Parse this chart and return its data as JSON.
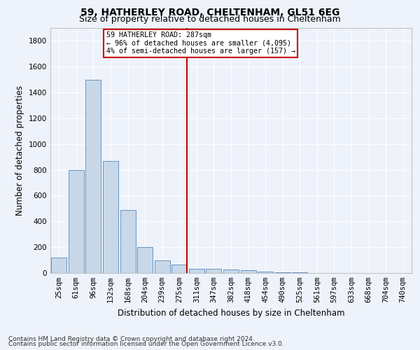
{
  "title1": "59, HATHERLEY ROAD, CHELTENHAM, GL51 6EG",
  "title2": "Size of property relative to detached houses in Cheltenham",
  "xlabel": "Distribution of detached houses by size in Cheltenham",
  "ylabel": "Number of detached properties",
  "footnote1": "Contains HM Land Registry data © Crown copyright and database right 2024.",
  "footnote2": "Contains public sector information licensed under the Open Government Licence v3.0.",
  "bar_labels": [
    "25sqm",
    "61sqm",
    "96sqm",
    "132sqm",
    "168sqm",
    "204sqm",
    "239sqm",
    "275sqm",
    "311sqm",
    "347sqm",
    "382sqm",
    "418sqm",
    "454sqm",
    "490sqm",
    "525sqm",
    "561sqm",
    "597sqm",
    "633sqm",
    "668sqm",
    "704sqm",
    "740sqm"
  ],
  "bar_values": [
    120,
    800,
    1500,
    870,
    490,
    200,
    100,
    65,
    35,
    30,
    25,
    20,
    10,
    5,
    3,
    2,
    2,
    1,
    1,
    1,
    1
  ],
  "bar_color": "#c8d8e8",
  "bar_edge_color": "#5588bb",
  "highlight_index": 7,
  "highlight_line_color": "#cc0000",
  "annotation_text": "59 HATHERLEY ROAD: 287sqm\n← 96% of detached houses are smaller (4,095)\n4% of semi-detached houses are larger (157) →",
  "annotation_box_color": "#ffffff",
  "annotation_box_edge_color": "#cc0000",
  "ylim": [
    0,
    1900
  ],
  "yticks": [
    0,
    200,
    400,
    600,
    800,
    1000,
    1200,
    1400,
    1600,
    1800
  ],
  "background_color": "#eef2fa",
  "grid_color": "#ffffff",
  "title1_fontsize": 10,
  "title2_fontsize": 9,
  "axis_label_fontsize": 8.5,
  "tick_fontsize": 7.5,
  "footnote_fontsize": 6.5
}
